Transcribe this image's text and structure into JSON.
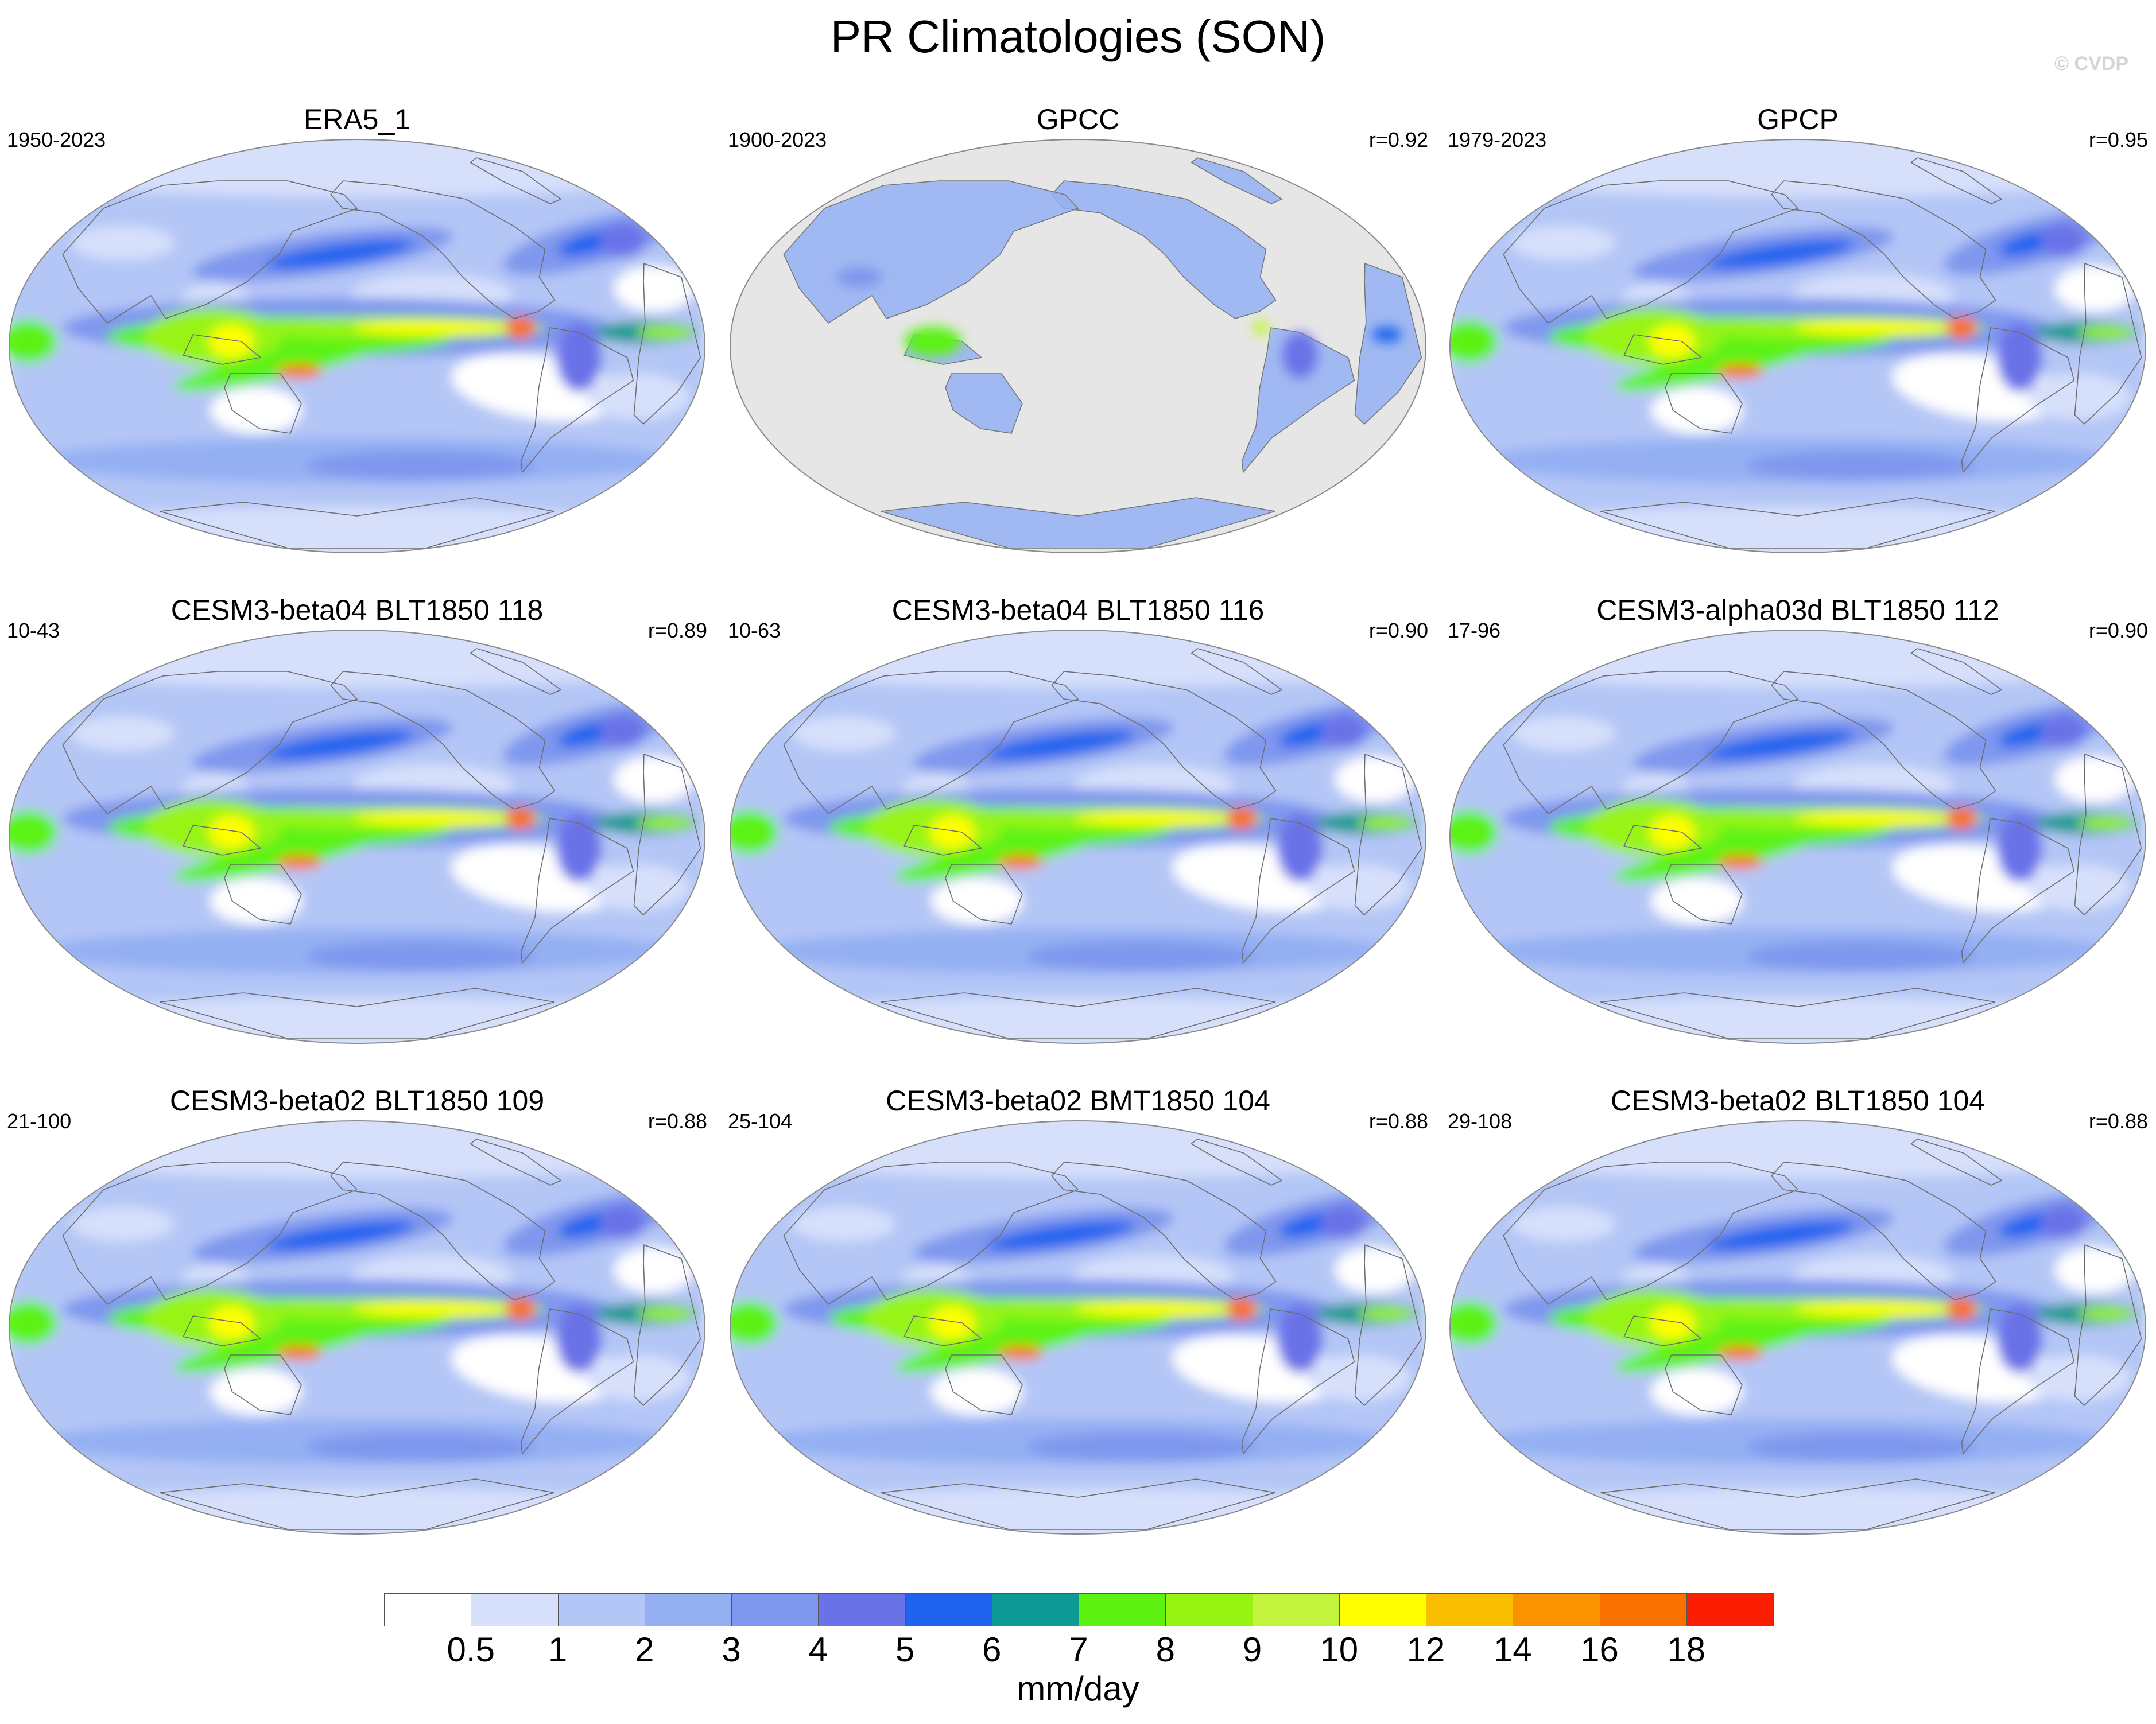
{
  "title": "PR Climatologies (SON)",
  "watermark": "© CVDP",
  "units": "mm/day",
  "colorbar": {
    "labels": [
      "0.5",
      "1",
      "2",
      "3",
      "4",
      "5",
      "6",
      "7",
      "8",
      "9",
      "10",
      "12",
      "14",
      "16",
      "18"
    ],
    "colors": [
      "#ffffff",
      "#d6e0fb",
      "#b4c6f6",
      "#94b0f3",
      "#7f97ee",
      "#6a72e8",
      "#1f63ef",
      "#0d9a94",
      "#5df212",
      "#97f412",
      "#c3f43d",
      "#fefe00",
      "#fbbd00",
      "#fb9200",
      "#fb7100",
      "#fb1e00"
    ]
  },
  "panels": [
    {
      "title": "ERA5_1",
      "years": "1950-2023",
      "r": "",
      "landmask": false
    },
    {
      "title": "GPCC",
      "years": "1900-2023",
      "r": "r=0.92",
      "landmask": true
    },
    {
      "title": "GPCP",
      "years": "1979-2023",
      "r": "r=0.95",
      "landmask": false
    },
    {
      "title": "CESM3-beta04 BLT1850 118",
      "years": "10-43",
      "r": "r=0.89",
      "landmask": false
    },
    {
      "title": "CESM3-beta04 BLT1850 116",
      "years": "10-63",
      "r": "r=0.90",
      "landmask": false
    },
    {
      "title": "CESM3-alpha03d BLT1850 112",
      "years": "17-96",
      "r": "r=0.90",
      "landmask": false
    },
    {
      "title": "CESM3-beta02 BLT1850 109",
      "years": "21-100",
      "r": "r=0.88",
      "landmask": false
    },
    {
      "title": "CESM3-beta02 BMT1850 104",
      "years": "25-104",
      "r": "r=0.88",
      "landmask": false
    },
    {
      "title": "CESM3-beta02 BLT1850 104",
      "years": "29-108",
      "r": "r=0.88",
      "landmask": false
    }
  ]
}
